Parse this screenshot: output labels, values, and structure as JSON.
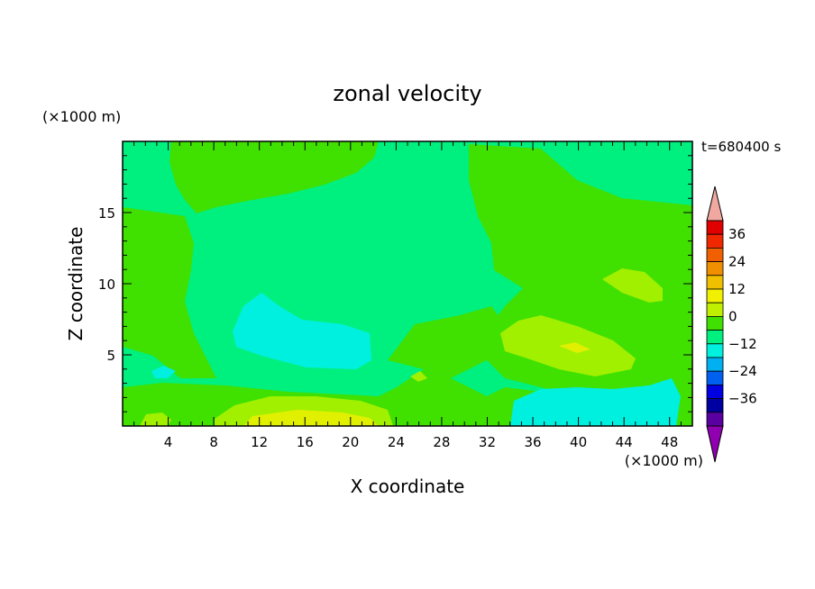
{
  "chart_data": {
    "type": "contour",
    "title": "zonal velocity",
    "time_label": "t=680400 s",
    "xlabel": "X coordinate",
    "ylabel": "Z coordinate",
    "x_units": "(×1000 m)",
    "y_units": "(×1000 m)",
    "xlim": [
      0,
      50
    ],
    "ylim": [
      0,
      20
    ],
    "x_ticks": [
      4,
      8,
      12,
      16,
      20,
      24,
      28,
      32,
      36,
      40,
      44,
      48
    ],
    "y_ticks": [
      5,
      10,
      15
    ],
    "grid": false,
    "background_level": "-6 to 0",
    "regions": [
      {
        "name": "main-field",
        "level": "-6 to 0",
        "x": [
          0,
          50
        ],
        "y": [
          0,
          20
        ]
      },
      {
        "name": "upper-band",
        "level": "0 to 6",
        "x": [
          4,
          22
        ],
        "y": [
          15,
          20
        ]
      },
      {
        "name": "upper-right-band",
        "level": "0 to 6",
        "x": [
          30,
          50
        ],
        "y": [
          14,
          20
        ]
      },
      {
        "name": "left-column",
        "level": "0 to 6",
        "x": [
          0,
          6
        ],
        "y": [
          3,
          15
        ]
      },
      {
        "name": "right-mid-region",
        "level": "0 to 6",
        "x": [
          30,
          50
        ],
        "y": [
          4,
          15
        ]
      },
      {
        "name": "bottom-band",
        "level": "0 to 6",
        "x": [
          1,
          34
        ],
        "y": [
          0,
          3
        ]
      },
      {
        "name": "central-weak",
        "level": "-12 to -6",
        "x": [
          10,
          22
        ],
        "y": [
          4,
          9
        ]
      },
      {
        "name": "central-core",
        "level": "-18 to -12",
        "x": [
          17,
          19
        ],
        "y": [
          5,
          6
        ]
      },
      {
        "name": "right-lower-weak",
        "level": "-12 to -6",
        "x": [
          34,
          48
        ],
        "y": [
          0,
          3
        ]
      },
      {
        "name": "right-mid-positive",
        "level": "6 to 12",
        "x": [
          33,
          46
        ],
        "y": [
          4,
          8
        ]
      },
      {
        "name": "right-mid-core",
        "level": "12 to 18",
        "x": [
          38,
          41
        ],
        "y": [
          5,
          6
        ]
      },
      {
        "name": "right-upper-positive",
        "level": "6 to 12",
        "x": [
          42,
          48
        ],
        "y": [
          9,
          11
        ]
      },
      {
        "name": "bottom-positive",
        "level": "6 to 12",
        "x": [
          8,
          24
        ],
        "y": [
          0,
          2
        ]
      },
      {
        "name": "bottom-positive-core",
        "level": "12 to 18",
        "x": [
          10,
          21
        ],
        "y": [
          0,
          1
        ]
      }
    ],
    "colorbar": {
      "labels": [
        "36",
        "24",
        "12",
        "0",
        "−12",
        "−24",
        "−36"
      ],
      "levels": [
        42,
        36,
        30,
        24,
        18,
        12,
        6,
        0,
        -6,
        -12,
        -18,
        -24,
        -30,
        -36,
        -42
      ],
      "colors": [
        "#f0a8a0",
        "#e00000",
        "#f02800",
        "#f06000",
        "#f09000",
        "#f0c000",
        "#f0f000",
        "#c0f000",
        "#40e000",
        "#00f080",
        "#00f0e0",
        "#00b0f0",
        "#0060f0",
        "#0000e0",
        "#0000a0",
        "#5a00a0",
        "#9000b0"
      ]
    },
    "level_colors": {
      "-18 to -12": "#00f0e0",
      "-12 to -6": "#00f0e0",
      "-6 to 0": "#00f080",
      "0 to 6": "#40e000",
      "6 to 12": "#a0f000",
      "12 to 18": "#e0f000"
    }
  }
}
